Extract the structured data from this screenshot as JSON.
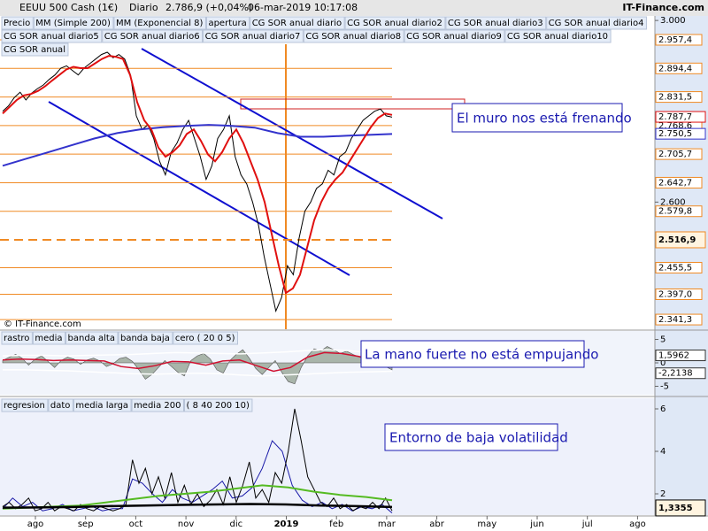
{
  "header": {
    "symbol": "EEUU 500 Cash (1€)",
    "period": "Diario",
    "quote": "2.786,9 (+0,04%)",
    "timestamp": "06-mar-2019 10:17:08",
    "site": "IT-Finance.com"
  },
  "x_axis": {
    "labels": [
      "ago",
      "sep",
      "oct",
      "nov",
      "dic",
      "2019",
      "feb",
      "mar",
      "abr",
      "may",
      "jun",
      "jul",
      "ago"
    ]
  },
  "chart_data": [
    {
      "type": "line",
      "watermark": "© IT-Finance.com",
      "annotation": "El muro nos está frenando",
      "ylim": [
        2320,
        3010
      ],
      "yticks": [
        {
          "value": 3000,
          "label": "3.000"
        },
        {
          "value": 2600,
          "label": "2.600"
        }
      ],
      "levels": [
        {
          "value": 2957.4,
          "label": "2.957,4"
        },
        {
          "value": 2894.4,
          "label": "2.894,4"
        },
        {
          "value": 2831.5,
          "label": "2.831,5"
        },
        {
          "value": 2768.6,
          "label": "2.768,6"
        },
        {
          "value": 2705.7,
          "label": "2.705,7"
        },
        {
          "value": 2642.7,
          "label": "2.642,7"
        },
        {
          "value": 2579.8,
          "label": "2.579,8"
        },
        {
          "value": 2455.5,
          "label": "2.455,5"
        },
        {
          "value": 2397.0,
          "label": "2.397,0"
        },
        {
          "value": 2341.3,
          "label": "2.341,3"
        }
      ],
      "level_color": "#f08a24",
      "current_level": {
        "value": 2516.9,
        "label": "2.516,9"
      },
      "price_marker": {
        "value": 2787.7,
        "label": "2.787,7"
      },
      "sma_marker": {
        "value": 2750.5,
        "label": "2.750,5"
      },
      "overlays": [
        "apertura",
        "CG SOR anual diario",
        "CG SOR anual diario2",
        "CG SOR anual diario3",
        "CG SOR anual diario4",
        "CG SOR anual diario5",
        "CG SOR anual diario6",
        "CG SOR anual diario7",
        "CG SOR anual diario8",
        "CG SOR anual diario9",
        "CG SOR anual diario10",
        "CG SOR anual"
      ],
      "series": [
        {
          "name": "Precio",
          "color": "#000000",
          "values": [
            2800,
            2812,
            2830,
            2842,
            2825,
            2840,
            2850,
            2858,
            2870,
            2880,
            2895,
            2900,
            2890,
            2880,
            2895,
            2905,
            2915,
            2925,
            2930,
            2918,
            2925,
            2915,
            2880,
            2790,
            2760,
            2770,
            2740,
            2690,
            2660,
            2710,
            2730,
            2760,
            2780,
            2740,
            2700,
            2650,
            2680,
            2740,
            2760,
            2790,
            2700,
            2660,
            2640,
            2600,
            2550,
            2480,
            2420,
            2360,
            2390,
            2460,
            2440,
            2520,
            2580,
            2600,
            2630,
            2640,
            2670,
            2660,
            2700,
            2710,
            2740,
            2760,
            2780,
            2790,
            2800,
            2805,
            2790,
            2787
          ]
        },
        {
          "name": "MM (Simple 200)",
          "color": "#3333cc",
          "values": [
            2680,
            2695,
            2710,
            2725,
            2740,
            2752,
            2760,
            2765,
            2768,
            2770,
            2768,
            2764,
            2752,
            2744,
            2744,
            2746,
            2748,
            2750
          ]
        },
        {
          "name": "MM (Exponencial 8)",
          "color": "#e01010",
          "values": [
            2795,
            2810,
            2825,
            2835,
            2838,
            2845,
            2855,
            2868,
            2880,
            2892,
            2898,
            2895,
            2895,
            2905,
            2915,
            2922,
            2920,
            2915,
            2880,
            2820,
            2780,
            2760,
            2720,
            2700,
            2710,
            2725,
            2750,
            2760,
            2735,
            2705,
            2690,
            2710,
            2740,
            2760,
            2730,
            2690,
            2650,
            2600,
            2530,
            2460,
            2400,
            2410,
            2440,
            2500,
            2560,
            2600,
            2630,
            2650,
            2665,
            2690,
            2715,
            2740,
            2765,
            2785,
            2795,
            2792
          ]
        }
      ]
    },
    {
      "type": "oscillator",
      "annotation": "La mano fuerte no está empujando",
      "ylim": [
        -6.8,
        6.8
      ],
      "yticks": [
        5,
        0,
        -5
      ],
      "zero_label": "cero ( 20 0 5)",
      "markers": [
        {
          "value": 1.5962,
          "label": "1,5962"
        },
        {
          "value": -2.2138,
          "label": "-2,2138"
        }
      ],
      "series": [
        {
          "name": "rastro",
          "color": "#8a9a88",
          "values": [
            0.5,
            1.2,
            1.8,
            1.0,
            -0.5,
            0.8,
            1.5,
            0.3,
            -1.0,
            0.5,
            1.2,
            0.8,
            -0.3,
            0.6,
            1.0,
            0.4,
            -0.8,
            -0.2,
            0.9,
            1.2,
            0.3,
            -1.5,
            -3.5,
            -2.5,
            -1.0,
            0.5,
            -0.8,
            -2.0,
            -2.8,
            0.5,
            1.5,
            2.0,
            0.8,
            -1.5,
            -2.2,
            0.5,
            1.8,
            2.8,
            1.0,
            -1.2,
            -2.5,
            -1.0,
            0.5,
            -2.0,
            -4.0,
            -4.5,
            -1.0,
            1.5,
            3.0,
            2.5,
            3.5,
            2.8,
            2.0,
            2.5,
            1.8,
            1.2,
            1.0,
            0.5,
            -0.2,
            -0.8,
            -1.5
          ]
        },
        {
          "name": "media",
          "color": "#d01030",
          "values": [
            0.6,
            0.8,
            0.7,
            0.5,
            0.6,
            0.5,
            0.4,
            -0.8,
            -1.2,
            -0.6,
            0.3,
            0.2,
            -0.5,
            0.4,
            0.6,
            -0.6,
            -1.8,
            -1.0,
            1.2,
            2.2,
            2.0,
            1.4,
            0.6,
            -0.2
          ]
        },
        {
          "name": "banda alta",
          "color": "#ffffff",
          "values": [
            1.5,
            1.6,
            1.6,
            1.5,
            1.6,
            1.7,
            1.8,
            2.0,
            2.2,
            2.1,
            2.0,
            1.9,
            2.1,
            2.3,
            2.6,
            2.8,
            2.6,
            2.2,
            1.9
          ]
        },
        {
          "name": "banda baja",
          "color": "#ffffff",
          "values": [
            -1.5,
            -1.5,
            -1.6,
            -1.7,
            -1.9,
            -2.1,
            -2.3,
            -2.4,
            -2.3,
            -2.2,
            -2.3,
            -2.6,
            -2.8,
            -2.6,
            -2.4,
            -2.2,
            -2.0,
            -1.9,
            -1.8
          ]
        }
      ]
    },
    {
      "type": "line",
      "annotation": "Entorno de baja volatilidad",
      "ylim": [
        1,
        6.5
      ],
      "yticks": [
        6,
        4,
        2
      ],
      "marker": {
        "value": 1.3355,
        "label": "1,3355"
      },
      "params": "( 8 40 200 10)",
      "series": [
        {
          "name": "regresion",
          "color": "#1a1aa8",
          "values": [
            1.3,
            1.8,
            1.4,
            1.6,
            1.2,
            1.3,
            1.5,
            1.2,
            1.3,
            1.4,
            1.2,
            1.3,
            1.3,
            2.7,
            2.5,
            2.0,
            1.6,
            2.2,
            1.8,
            1.6,
            1.9,
            2.2,
            2.6,
            1.8,
            1.9,
            2.3,
            3.2,
            4.5,
            4.0,
            2.4,
            1.7,
            1.4,
            1.6,
            1.3,
            1.5,
            1.2,
            1.4,
            1.3,
            1.5,
            1.1
          ]
        },
        {
          "name": "dato",
          "color": "#000000",
          "values": [
            1.4,
            1.6,
            1.3,
            1.5,
            1.8,
            1.2,
            1.3,
            1.6,
            1.2,
            1.4,
            1.3,
            1.2,
            1.5,
            1.3,
            1.2,
            1.4,
            1.3,
            1.2,
            1.3,
            1.5,
            3.6,
            2.5,
            3.2,
            2.0,
            2.8,
            1.8,
            3.0,
            1.6,
            2.4,
            1.5,
            2.0,
            1.4,
            1.7,
            2.2,
            1.5,
            2.8,
            1.6,
            2.4,
            3.5,
            1.8,
            2.2,
            1.6,
            3.0,
            2.5,
            4.0,
            6.0,
            4.5,
            2.8,
            2.2,
            1.6,
            1.4,
            1.8,
            1.3,
            1.5,
            1.2,
            1.4,
            1.3,
            1.6,
            1.3,
            1.8,
            1.2
          ]
        },
        {
          "name": "media larga",
          "color": "#55bb22",
          "values": [
            1.3,
            1.35,
            1.4,
            1.45,
            1.6,
            1.75,
            1.9,
            2.0,
            2.1,
            2.25,
            2.4,
            2.3,
            2.1,
            1.95,
            1.85,
            1.7
          ]
        },
        {
          "name": "media 200",
          "color": "#000000",
          "values": [
            1.35,
            1.36,
            1.38,
            1.42,
            1.45,
            1.48,
            1.5,
            1.52,
            1.5,
            1.45,
            1.42,
            1.38
          ]
        }
      ]
    }
  ]
}
